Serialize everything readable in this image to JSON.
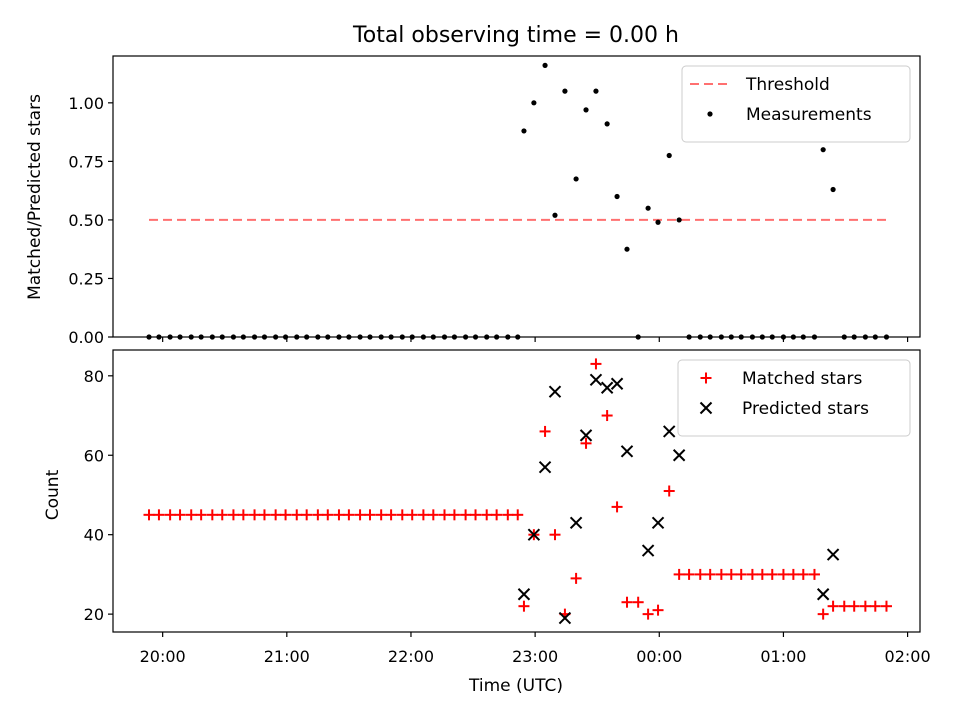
{
  "chart_data": [
    {
      "type": "scatter",
      "title": "Total observing time = 0.00 h",
      "ylabel": "Matched/Predicted stars",
      "xlabel": "",
      "x_unit": "hours (UTC, continuing past midnight)",
      "xlim": [
        19.6,
        26.1
      ],
      "ylim": [
        0,
        1.2
      ],
      "yticks": [
        0.0,
        0.25,
        0.5,
        0.75,
        1.0
      ],
      "ytick_labels": [
        "0.00",
        "0.25",
        "0.50",
        "0.75",
        "1.00"
      ],
      "grid": false,
      "legend_position": "top-right",
      "threshold": {
        "name": "Threshold",
        "y": 0.5,
        "x_start": 19.89,
        "x_end": 25.83,
        "color": "#ff7070",
        "style": "dashed"
      },
      "series": [
        {
          "name": "Measurements",
          "marker": "dot",
          "color": "#000000",
          "points": [
            [
              19.89,
              0
            ],
            [
              19.97,
              0
            ],
            [
              20.06,
              0
            ],
            [
              20.14,
              0
            ],
            [
              20.23,
              0
            ],
            [
              20.31,
              0
            ],
            [
              20.4,
              0
            ],
            [
              20.48,
              0
            ],
            [
              20.57,
              0
            ],
            [
              20.65,
              0
            ],
            [
              20.74,
              0
            ],
            [
              20.82,
              0
            ],
            [
              20.91,
              0
            ],
            [
              20.99,
              0
            ],
            [
              21.08,
              0
            ],
            [
              21.16,
              0
            ],
            [
              21.25,
              0
            ],
            [
              21.33,
              0
            ],
            [
              21.42,
              0
            ],
            [
              21.5,
              0
            ],
            [
              21.59,
              0
            ],
            [
              21.67,
              0
            ],
            [
              21.76,
              0
            ],
            [
              21.84,
              0
            ],
            [
              21.93,
              0
            ],
            [
              22.01,
              0
            ],
            [
              22.1,
              0
            ],
            [
              22.18,
              0
            ],
            [
              22.27,
              0
            ],
            [
              22.35,
              0
            ],
            [
              22.44,
              0
            ],
            [
              22.52,
              0
            ],
            [
              22.61,
              0
            ],
            [
              22.69,
              0
            ],
            [
              22.78,
              0
            ],
            [
              22.86,
              0
            ],
            [
              22.91,
              0.88
            ],
            [
              22.99,
              1.0
            ],
            [
              23.08,
              1.16
            ],
            [
              23.16,
              0.52
            ],
            [
              23.24,
              1.05
            ],
            [
              23.33,
              0.675
            ],
            [
              23.41,
              0.97
            ],
            [
              23.49,
              1.05
            ],
            [
              23.58,
              0.91
            ],
            [
              23.66,
              0.6
            ],
            [
              23.74,
              0.375
            ],
            [
              23.83,
              0
            ],
            [
              23.91,
              0.55
            ],
            [
              23.99,
              0.49
            ],
            [
              24.08,
              0.775
            ],
            [
              24.16,
              0.5
            ],
            [
              24.24,
              0
            ],
            [
              24.33,
              0
            ],
            [
              24.41,
              0
            ],
            [
              24.5,
              0
            ],
            [
              24.58,
              0
            ],
            [
              24.66,
              0
            ],
            [
              24.75,
              0
            ],
            [
              24.83,
              0
            ],
            [
              24.91,
              0
            ],
            [
              25.0,
              0
            ],
            [
              25.08,
              0
            ],
            [
              25.16,
              0
            ],
            [
              25.25,
              0
            ],
            [
              25.32,
              0.8
            ],
            [
              25.4,
              0.63
            ],
            [
              25.49,
              0
            ],
            [
              25.57,
              0
            ],
            [
              25.66,
              0
            ],
            [
              25.74,
              0
            ],
            [
              25.83,
              0
            ]
          ]
        }
      ]
    },
    {
      "type": "scatter",
      "title": "",
      "ylabel": "Count",
      "xlabel": "Time (UTC)",
      "x_unit": "hours (UTC, continuing past midnight)",
      "xlim": [
        19.6,
        26.1
      ],
      "ylim": [
        15.5,
        86.5
      ],
      "yticks": [
        20,
        40,
        60,
        80
      ],
      "ytick_labels": [
        "20",
        "40",
        "60",
        "80"
      ],
      "xticks": [
        20,
        21,
        22,
        23,
        24,
        25,
        26
      ],
      "xtick_labels": [
        "20:00",
        "21:00",
        "22:00",
        "23:00",
        "00:00",
        "01:00",
        "02:00"
      ],
      "grid": false,
      "legend_position": "top-right",
      "series": [
        {
          "name": "Matched stars",
          "marker": "plus",
          "color": "#ff0000",
          "points": [
            [
              19.89,
              45
            ],
            [
              19.97,
              45
            ],
            [
              20.06,
              45
            ],
            [
              20.14,
              45
            ],
            [
              20.23,
              45
            ],
            [
              20.31,
              45
            ],
            [
              20.4,
              45
            ],
            [
              20.48,
              45
            ],
            [
              20.57,
              45
            ],
            [
              20.65,
              45
            ],
            [
              20.74,
              45
            ],
            [
              20.82,
              45
            ],
            [
              20.91,
              45
            ],
            [
              20.99,
              45
            ],
            [
              21.08,
              45
            ],
            [
              21.16,
              45
            ],
            [
              21.25,
              45
            ],
            [
              21.33,
              45
            ],
            [
              21.42,
              45
            ],
            [
              21.5,
              45
            ],
            [
              21.59,
              45
            ],
            [
              21.67,
              45
            ],
            [
              21.76,
              45
            ],
            [
              21.84,
              45
            ],
            [
              21.93,
              45
            ],
            [
              22.01,
              45
            ],
            [
              22.1,
              45
            ],
            [
              22.18,
              45
            ],
            [
              22.27,
              45
            ],
            [
              22.35,
              45
            ],
            [
              22.44,
              45
            ],
            [
              22.52,
              45
            ],
            [
              22.61,
              45
            ],
            [
              22.69,
              45
            ],
            [
              22.78,
              45
            ],
            [
              22.86,
              45
            ],
            [
              22.91,
              22
            ],
            [
              22.99,
              40
            ],
            [
              23.08,
              66
            ],
            [
              23.16,
              40
            ],
            [
              23.24,
              20
            ],
            [
              23.33,
              29
            ],
            [
              23.41,
              63
            ],
            [
              23.49,
              83
            ],
            [
              23.58,
              70
            ],
            [
              23.66,
              47
            ],
            [
              23.74,
              23
            ],
            [
              23.83,
              23
            ],
            [
              23.91,
              20
            ],
            [
              23.99,
              21
            ],
            [
              24.08,
              51
            ],
            [
              24.16,
              30
            ],
            [
              24.24,
              30
            ],
            [
              24.33,
              30
            ],
            [
              24.41,
              30
            ],
            [
              24.5,
              30
            ],
            [
              24.58,
              30
            ],
            [
              24.66,
              30
            ],
            [
              24.75,
              30
            ],
            [
              24.83,
              30
            ],
            [
              24.91,
              30
            ],
            [
              25.0,
              30
            ],
            [
              25.08,
              30
            ],
            [
              25.16,
              30
            ],
            [
              25.25,
              30
            ],
            [
              25.32,
              20
            ],
            [
              25.4,
              22
            ],
            [
              25.49,
              22
            ],
            [
              25.57,
              22
            ],
            [
              25.66,
              22
            ],
            [
              25.74,
              22
            ],
            [
              25.83,
              22
            ]
          ]
        },
        {
          "name": "Predicted stars",
          "marker": "x",
          "color": "#000000",
          "points": [
            [
              22.91,
              25
            ],
            [
              22.99,
              40
            ],
            [
              23.08,
              57
            ],
            [
              23.16,
              76
            ],
            [
              23.24,
              19
            ],
            [
              23.33,
              43
            ],
            [
              23.41,
              65
            ],
            [
              23.49,
              79
            ],
            [
              23.58,
              77
            ],
            [
              23.66,
              78
            ],
            [
              23.74,
              61
            ],
            [
              23.91,
              36
            ],
            [
              23.99,
              43
            ],
            [
              24.08,
              66
            ],
            [
              24.16,
              60
            ],
            [
              25.32,
              25
            ],
            [
              25.4,
              35
            ]
          ]
        }
      ]
    }
  ]
}
